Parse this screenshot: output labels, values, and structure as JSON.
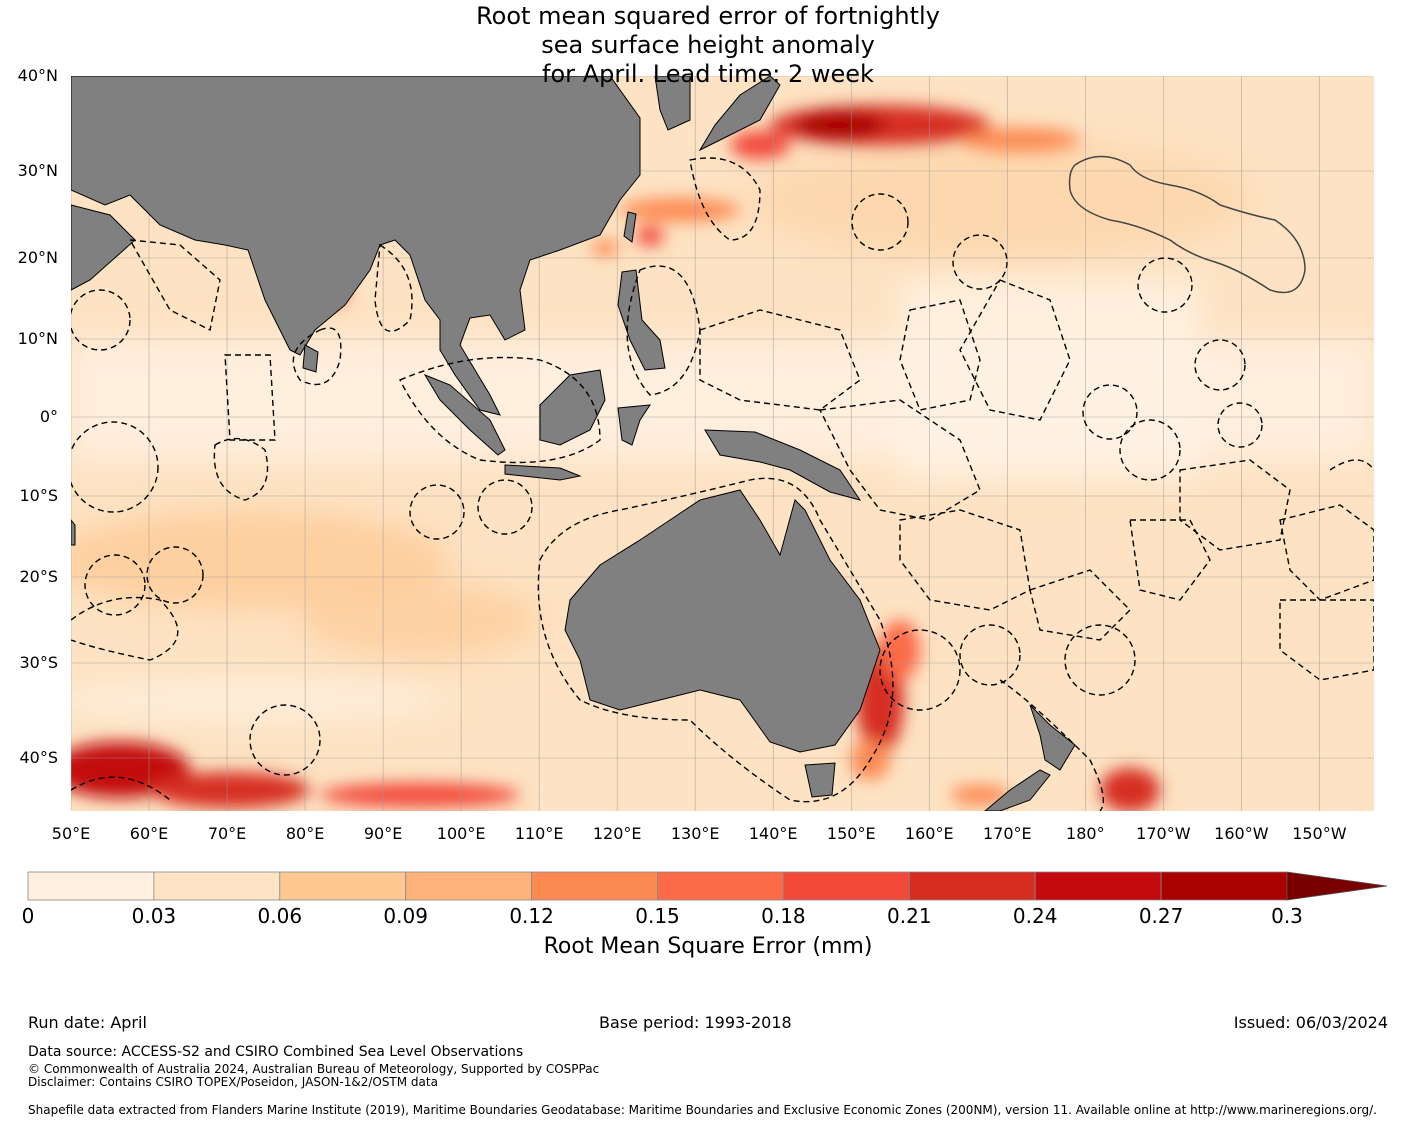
{
  "title": {
    "line1": "Root mean squared error of fortnightly",
    "line2": "sea surface height anomaly",
    "line3": "for April. Lead time: 2 week"
  },
  "map": {
    "lat_labels": [
      "40°N",
      "30°N",
      "20°N",
      "10°N",
      "0°",
      "10°S",
      "20°S",
      "30°S",
      "40°S"
    ],
    "lon_labels": [
      "50°E",
      "60°E",
      "70°E",
      "80°E",
      "90°E",
      "100°E",
      "110°E",
      "120°E",
      "130°E",
      "140°E",
      "150°E",
      "160°E",
      "170°E",
      "180°",
      "170°W",
      "160°W",
      "150°W"
    ],
    "extent": {
      "lon_min": 50,
      "lon_max": 217,
      "lat_min": -46,
      "lat_max": 40
    },
    "ocean_base_color": "#fde3c3",
    "land_color": "#808080"
  },
  "colorbar": {
    "ticks": [
      "0",
      "0.03",
      "0.06",
      "0.09",
      "0.12",
      "0.15",
      "0.18",
      "0.21",
      "0.24",
      "0.27",
      "0.3"
    ],
    "colors": [
      "#fff0e0",
      "#fee4c5",
      "#fdc892",
      "#fdb27a",
      "#fc8a52",
      "#fb6b47",
      "#f2493a",
      "#d62d20",
      "#c30a0e",
      "#a90000"
    ],
    "extend_color": "#7a0000",
    "label": "Root Mean Square Error (mm)"
  },
  "footer": {
    "run_date": "Run date: April",
    "base_period": "Base period: 1993-2018",
    "issued": "Issued: 06/03/2024",
    "data_source": "Data source: ACCESS-S2 and CSIRO Combined Sea Level Observations",
    "copyright": "© Commonwealth of Australia 2024, Australian Bureau of Meteorology, Supported by COSPPac",
    "disclaimer": "Disclaimer: Contains CSIRO TOPEX/Poseidon, JASON-1&2/OSTM data",
    "shapefile": "Shapefile data extracted from Flanders Marine Institute (2019), Maritime Boundaries Geodatabase: Maritime Boundaries and Exclusive Economic Zones (200NM), version 11. Available online at http://www.marineregions.org/."
  }
}
